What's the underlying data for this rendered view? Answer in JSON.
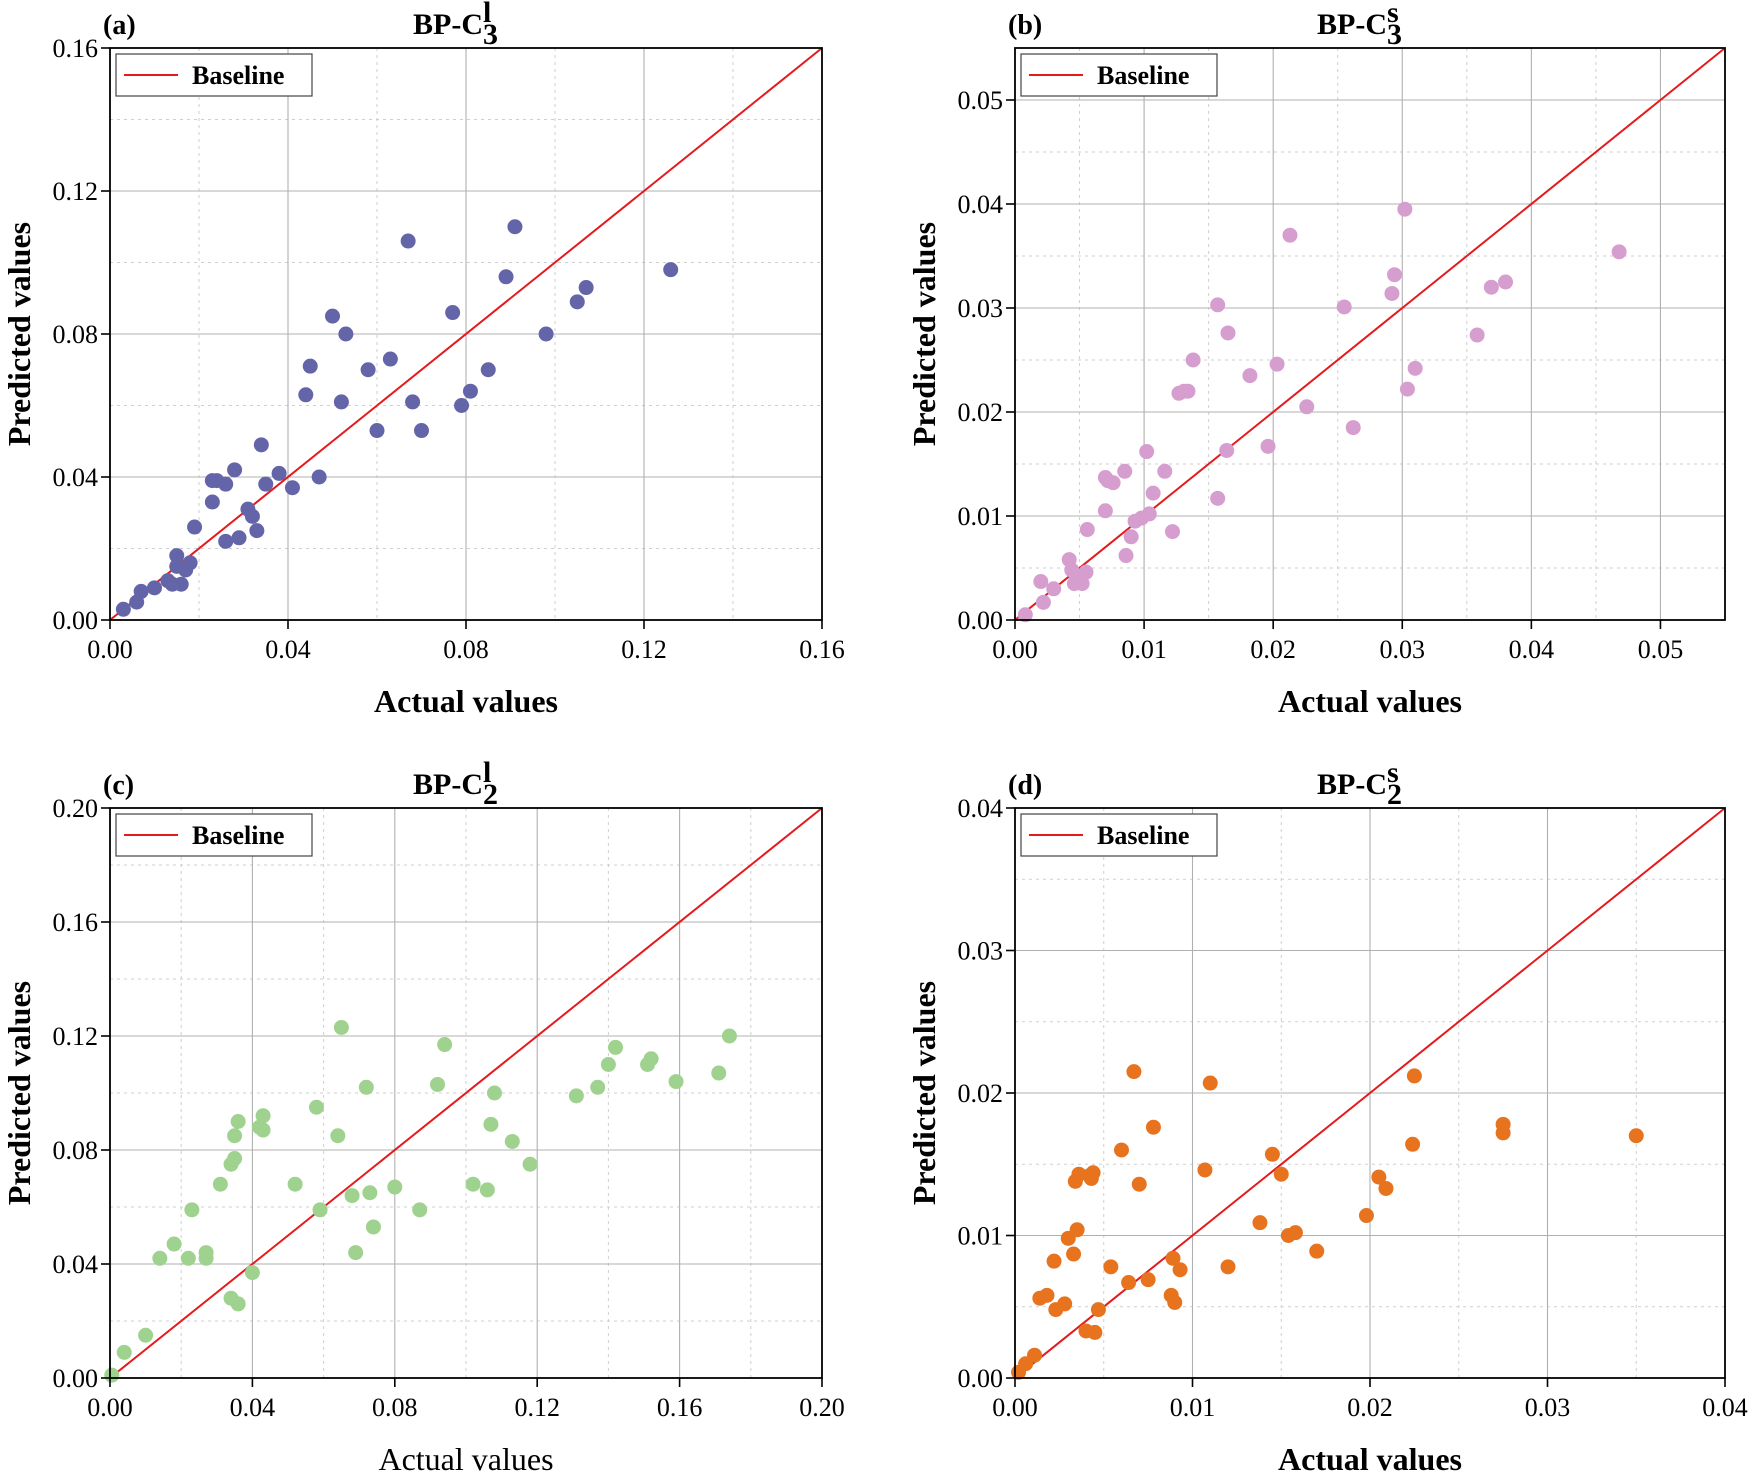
{
  "chart_data": [
    {
      "type": "scatter",
      "panel": "(a)",
      "title": {
        "main": "BP-C",
        "sup": "l",
        "sub": "3"
      },
      "xlabel": "Actual values",
      "ylabel": "Predicted values",
      "xlabel_bold": true,
      "xlim": [
        0,
        0.16
      ],
      "ylim": [
        0,
        0.16
      ],
      "xticks": [
        0,
        0.04,
        0.08,
        0.12,
        0.16
      ],
      "xtick_labels": [
        "0.00",
        "0.04",
        "0.08",
        "0.12",
        "0.16"
      ],
      "yticks": [
        0,
        0.04,
        0.08,
        0.12,
        0.16
      ],
      "ytick_labels": [
        "0.00",
        "0.04",
        "0.08",
        "0.12",
        "0.16"
      ],
      "grid": true,
      "legend": {
        "label": "Baseline",
        "position": "top-left"
      },
      "baseline_color": "#e41a1c",
      "point_color": "#6464a8",
      "points": [
        [
          0.003,
          0.003
        ],
        [
          0.006,
          0.005
        ],
        [
          0.007,
          0.008
        ],
        [
          0.01,
          0.009
        ],
        [
          0.013,
          0.011
        ],
        [
          0.014,
          0.01
        ],
        [
          0.015,
          0.018
        ],
        [
          0.015,
          0.015
        ],
        [
          0.016,
          0.01
        ],
        [
          0.017,
          0.014
        ],
        [
          0.018,
          0.016
        ],
        [
          0.019,
          0.026
        ],
        [
          0.023,
          0.039
        ],
        [
          0.023,
          0.033
        ],
        [
          0.024,
          0.039
        ],
        [
          0.026,
          0.038
        ],
        [
          0.026,
          0.022
        ],
        [
          0.028,
          0.042
        ],
        [
          0.029,
          0.023
        ],
        [
          0.031,
          0.031
        ],
        [
          0.032,
          0.029
        ],
        [
          0.033,
          0.025
        ],
        [
          0.034,
          0.049
        ],
        [
          0.035,
          0.038
        ],
        [
          0.038,
          0.041
        ],
        [
          0.041,
          0.037
        ],
        [
          0.044,
          0.063
        ],
        [
          0.045,
          0.071
        ],
        [
          0.047,
          0.04
        ],
        [
          0.05,
          0.085
        ],
        [
          0.052,
          0.061
        ],
        [
          0.053,
          0.08
        ],
        [
          0.058,
          0.07
        ],
        [
          0.06,
          0.053
        ],
        [
          0.063,
          0.073
        ],
        [
          0.067,
          0.106
        ],
        [
          0.068,
          0.061
        ],
        [
          0.07,
          0.053
        ],
        [
          0.077,
          0.086
        ],
        [
          0.079,
          0.06
        ],
        [
          0.081,
          0.064
        ],
        [
          0.085,
          0.07
        ],
        [
          0.089,
          0.096
        ],
        [
          0.091,
          0.11
        ],
        [
          0.098,
          0.08
        ],
        [
          0.105,
          0.089
        ],
        [
          0.107,
          0.093
        ],
        [
          0.126,
          0.098
        ]
      ]
    },
    {
      "type": "scatter",
      "panel": "(b)",
      "title": {
        "main": "BP-C",
        "sup": "s",
        "sub": "3"
      },
      "xlabel": "Actual values",
      "ylabel": "Predicted values",
      "xlabel_bold": true,
      "xlim": [
        0,
        0.055
      ],
      "ylim": [
        0,
        0.055
      ],
      "xticks": [
        0,
        0.01,
        0.02,
        0.03,
        0.04,
        0.05
      ],
      "xtick_labels": [
        "0.00",
        "0.01",
        "0.02",
        "0.03",
        "0.04",
        "0.05"
      ],
      "yticks": [
        0,
        0.01,
        0.02,
        0.03,
        0.04,
        0.05
      ],
      "ytick_labels": [
        "0.00",
        "0.01",
        "0.02",
        "0.03",
        "0.04",
        "0.05"
      ],
      "grid": true,
      "legend": {
        "label": "Baseline",
        "position": "top-left"
      },
      "baseline_color": "#e41a1c",
      "point_color": "#d69ecf",
      "points": [
        [
          0.0008,
          0.0005
        ],
        [
          0.002,
          0.0037
        ],
        [
          0.0022,
          0.0017
        ],
        [
          0.003,
          0.003
        ],
        [
          0.0042,
          0.0058
        ],
        [
          0.0044,
          0.0048
        ],
        [
          0.0046,
          0.0035
        ],
        [
          0.0051,
          0.004
        ],
        [
          0.0052,
          0.0035
        ],
        [
          0.0055,
          0.0046
        ],
        [
          0.0056,
          0.0087
        ],
        [
          0.007,
          0.0137
        ],
        [
          0.007,
          0.0105
        ],
        [
          0.0072,
          0.0134
        ],
        [
          0.0076,
          0.0132
        ],
        [
          0.0085,
          0.0143
        ],
        [
          0.0086,
          0.0062
        ],
        [
          0.009,
          0.008
        ],
        [
          0.0093,
          0.0095
        ],
        [
          0.0098,
          0.0098
        ],
        [
          0.0102,
          0.0162
        ],
        [
          0.0104,
          0.0102
        ],
        [
          0.0107,
          0.0122
        ],
        [
          0.0116,
          0.0143
        ],
        [
          0.0122,
          0.0085
        ],
        [
          0.0127,
          0.0218
        ],
        [
          0.0131,
          0.022
        ],
        [
          0.0134,
          0.022
        ],
        [
          0.0138,
          0.025
        ],
        [
          0.0157,
          0.0117
        ],
        [
          0.0157,
          0.0303
        ],
        [
          0.0164,
          0.0163
        ],
        [
          0.0165,
          0.0276
        ],
        [
          0.0182,
          0.0235
        ],
        [
          0.0196,
          0.0167
        ],
        [
          0.0203,
          0.0246
        ],
        [
          0.0213,
          0.037
        ],
        [
          0.0226,
          0.0205
        ],
        [
          0.0255,
          0.0301
        ],
        [
          0.0262,
          0.0185
        ],
        [
          0.0292,
          0.0314
        ],
        [
          0.0294,
          0.0332
        ],
        [
          0.0302,
          0.0395
        ],
        [
          0.0304,
          0.0222
        ],
        [
          0.031,
          0.0242
        ],
        [
          0.0358,
          0.0274
        ],
        [
          0.0369,
          0.032
        ],
        [
          0.038,
          0.0325
        ],
        [
          0.0468,
          0.0354
        ]
      ]
    },
    {
      "type": "scatter",
      "panel": "(c)",
      "title": {
        "main": "BP-C",
        "sup": "l",
        "sub": "2"
      },
      "xlabel": "Actual values",
      "ylabel": "Predicted values",
      "xlabel_bold": false,
      "xlim": [
        0,
        0.2
      ],
      "ylim": [
        0,
        0.2
      ],
      "xticks": [
        0,
        0.04,
        0.08,
        0.12,
        0.16,
        0.2
      ],
      "xtick_labels": [
        "0.00",
        "0.04",
        "0.08",
        "0.12",
        "0.16",
        "0.20"
      ],
      "yticks": [
        0,
        0.04,
        0.08,
        0.12,
        0.16,
        0.2
      ],
      "ytick_labels": [
        "0.00",
        "0.04",
        "0.08",
        "0.12",
        "0.16",
        "0.20"
      ],
      "grid": true,
      "legend": {
        "label": "Baseline",
        "position": "top-left"
      },
      "baseline_color": "#e41a1c",
      "point_color": "#9fd28e",
      "points": [
        [
          0.0005,
          0.001
        ],
        [
          0.004,
          0.009
        ],
        [
          0.01,
          0.015
        ],
        [
          0.014,
          0.042
        ],
        [
          0.018,
          0.047
        ],
        [
          0.022,
          0.042
        ],
        [
          0.023,
          0.059
        ],
        [
          0.027,
          0.042
        ],
        [
          0.027,
          0.044
        ],
        [
          0.031,
          0.068
        ],
        [
          0.034,
          0.075
        ],
        [
          0.034,
          0.028
        ],
        [
          0.035,
          0.085
        ],
        [
          0.035,
          0.077
        ],
        [
          0.036,
          0.026
        ],
        [
          0.036,
          0.09
        ],
        [
          0.04,
          0.037
        ],
        [
          0.042,
          0.088
        ],
        [
          0.043,
          0.092
        ],
        [
          0.043,
          0.087
        ],
        [
          0.052,
          0.068
        ],
        [
          0.058,
          0.095
        ],
        [
          0.059,
          0.059
        ],
        [
          0.064,
          0.085
        ],
        [
          0.065,
          0.123
        ],
        [
          0.068,
          0.064
        ],
        [
          0.069,
          0.044
        ],
        [
          0.072,
          0.102
        ],
        [
          0.073,
          0.065
        ],
        [
          0.074,
          0.053
        ],
        [
          0.08,
          0.067
        ],
        [
          0.087,
          0.059
        ],
        [
          0.092,
          0.103
        ],
        [
          0.094,
          0.117
        ],
        [
          0.102,
          0.068
        ],
        [
          0.106,
          0.066
        ],
        [
          0.107,
          0.089
        ],
        [
          0.108,
          0.1
        ],
        [
          0.113,
          0.083
        ],
        [
          0.118,
          0.075
        ],
        [
          0.131,
          0.099
        ],
        [
          0.137,
          0.102
        ],
        [
          0.14,
          0.11
        ],
        [
          0.142,
          0.116
        ],
        [
          0.151,
          0.11
        ],
        [
          0.152,
          0.112
        ],
        [
          0.159,
          0.104
        ],
        [
          0.171,
          0.107
        ],
        [
          0.174,
          0.12
        ]
      ]
    },
    {
      "type": "scatter",
      "panel": "(d)",
      "title": {
        "main": "BP-C",
        "sup": "s",
        "sub": "2"
      },
      "xlabel": "Actual values",
      "ylabel": "Predicted values",
      "xlabel_bold": true,
      "xlim": [
        0,
        0.04
      ],
      "ylim": [
        0,
        0.04
      ],
      "xticks": [
        0,
        0.01,
        0.02,
        0.03,
        0.04
      ],
      "xtick_labels": [
        "0.00",
        "0.01",
        "0.02",
        "0.03",
        "0.04"
      ],
      "yticks": [
        0,
        0.01,
        0.02,
        0.03,
        0.04
      ],
      "ytick_labels": [
        "0.00",
        "0.01",
        "0.02",
        "0.03",
        "0.04"
      ],
      "grid": true,
      "legend": {
        "label": "Baseline",
        "position": "top-left"
      },
      "baseline_color": "#e41a1c",
      "point_color": "#e8731f",
      "points": [
        [
          0.0002,
          0.0004
        ],
        [
          0.0006,
          0.001
        ],
        [
          0.0011,
          0.0016
        ],
        [
          0.0014,
          0.0056
        ],
        [
          0.0018,
          0.0058
        ],
        [
          0.0022,
          0.0082
        ],
        [
          0.0023,
          0.0048
        ],
        [
          0.0028,
          0.0052
        ],
        [
          0.003,
          0.0098
        ],
        [
          0.0033,
          0.0087
        ],
        [
          0.0034,
          0.0138
        ],
        [
          0.0035,
          0.0104
        ],
        [
          0.0036,
          0.0143
        ],
        [
          0.004,
          0.0033
        ],
        [
          0.0042,
          0.0142
        ],
        [
          0.0043,
          0.014
        ],
        [
          0.0044,
          0.0144
        ],
        [
          0.0045,
          0.0032
        ],
        [
          0.0047,
          0.0048
        ],
        [
          0.0054,
          0.0078
        ],
        [
          0.006,
          0.016
        ],
        [
          0.0064,
          0.0067
        ],
        [
          0.0067,
          0.0215
        ],
        [
          0.007,
          0.0136
        ],
        [
          0.0075,
          0.0069
        ],
        [
          0.0078,
          0.0176
        ],
        [
          0.0088,
          0.0058
        ],
        [
          0.0089,
          0.0084
        ],
        [
          0.009,
          0.0053
        ],
        [
          0.0093,
          0.0076
        ],
        [
          0.0107,
          0.0146
        ],
        [
          0.011,
          0.0207
        ],
        [
          0.012,
          0.0078
        ],
        [
          0.0138,
          0.0109
        ],
        [
          0.0145,
          0.0157
        ],
        [
          0.015,
          0.0143
        ],
        [
          0.0154,
          0.01
        ],
        [
          0.0158,
          0.0102
        ],
        [
          0.017,
          0.0089
        ],
        [
          0.0198,
          0.0114
        ],
        [
          0.0205,
          0.0141
        ],
        [
          0.0209,
          0.0133
        ],
        [
          0.0224,
          0.0164
        ],
        [
          0.0225,
          0.0212
        ],
        [
          0.0275,
          0.0178
        ],
        [
          0.0275,
          0.0172
        ],
        [
          0.035,
          0.017
        ]
      ]
    }
  ]
}
